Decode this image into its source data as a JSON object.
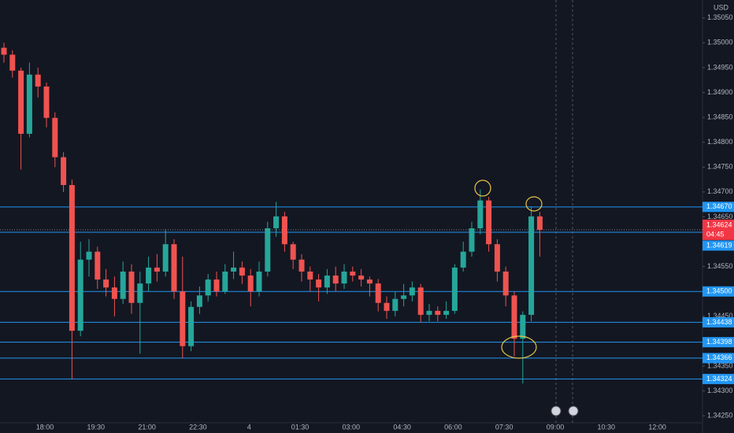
{
  "chart_data": {
    "type": "candlestick",
    "currency": "USD",
    "up_color": "#26a69a",
    "down_color": "#ef5350",
    "level_color": "#2196f3",
    "current_color": "#f23645",
    "ylim": [
      1.34236,
      1.35086
    ],
    "yticks": [
      {
        "value": 1.3505,
        "label": "1.35050"
      },
      {
        "value": 1.35,
        "label": "1.35000"
      },
      {
        "value": 1.3495,
        "label": "1.34950"
      },
      {
        "value": 1.349,
        "label": "1.34900"
      },
      {
        "value": 1.3485,
        "label": "1.34850"
      },
      {
        "value": 1.348,
        "label": "1.34800"
      },
      {
        "value": 1.3475,
        "label": "1.34750"
      },
      {
        "value": 1.347,
        "label": "1.34700"
      },
      {
        "value": 1.3465,
        "label": "1.34650"
      },
      {
        "value": 1.3455,
        "label": "1.34550"
      },
      {
        "value": 1.3445,
        "label": "1.34450"
      },
      {
        "value": 1.3435,
        "label": "1.34350"
      },
      {
        "value": 1.343,
        "label": "1.34300"
      },
      {
        "value": 1.3425,
        "label": "1.34250"
      }
    ],
    "xticks": [
      "18:00",
      "19:30",
      "21:00",
      "22:30",
      "4",
      "01:30",
      "03:00",
      "04:30",
      "06:00",
      "07:30",
      "09:00",
      "10:30",
      "12:00"
    ],
    "levels": [
      {
        "value": 1.3467,
        "label": "1.34670"
      },
      {
        "value": 1.34619,
        "label": "1.34619"
      },
      {
        "value": 1.345,
        "label": "1.34500"
      },
      {
        "value": 1.34438,
        "label": "1.34438"
      },
      {
        "value": 1.34398,
        "label": "1.34398"
      },
      {
        "value": 1.34366,
        "label": "1.34366"
      },
      {
        "value": 1.34324,
        "label": "1.34324"
      }
    ],
    "current": {
      "value": 1.34624,
      "countdown": "04:45"
    },
    "candles": [
      [
        1.3499,
        1.35,
        1.3496,
        1.34976
      ],
      [
        1.34976,
        1.34985,
        1.3493,
        1.34944
      ],
      [
        1.34944,
        1.3495,
        1.34745,
        1.34817
      ],
      [
        1.34817,
        1.3496,
        1.3481,
        1.34936
      ],
      [
        1.34936,
        1.3495,
        1.3489,
        1.34912
      ],
      [
        1.34912,
        1.3492,
        1.3483,
        1.34849
      ],
      [
        1.34849,
        1.3486,
        1.3475,
        1.3477
      ],
      [
        1.3477,
        1.3478,
        1.347,
        1.34714
      ],
      [
        1.34714,
        1.34725,
        1.34324,
        1.34421
      ],
      [
        1.34421,
        1.346,
        1.3441,
        1.34564
      ],
      [
        1.34564,
        1.34605,
        1.3453,
        1.3458
      ],
      [
        1.3458,
        1.3459,
        1.34505,
        1.34524
      ],
      [
        1.34524,
        1.34545,
        1.3449,
        1.34508
      ],
      [
        1.34508,
        1.3453,
        1.3445,
        1.34485
      ],
      [
        1.34485,
        1.3456,
        1.34475,
        1.3454
      ],
      [
        1.3454,
        1.34555,
        1.34455,
        1.34477
      ],
      [
        1.34477,
        1.3454,
        1.34375,
        1.34516
      ],
      [
        1.34516,
        1.3457,
        1.345,
        1.34548
      ],
      [
        1.34548,
        1.34575,
        1.3452,
        1.3454
      ],
      [
        1.3454,
        1.34625,
        1.3453,
        1.34595
      ],
      [
        1.34595,
        1.34605,
        1.34485,
        1.345
      ],
      [
        1.345,
        1.3457,
        1.34366,
        1.3439
      ],
      [
        1.3439,
        1.3448,
        1.3438,
        1.34469
      ],
      [
        1.34469,
        1.3451,
        1.34455,
        1.34492
      ],
      [
        1.34492,
        1.34535,
        1.3448,
        1.34524
      ],
      [
        1.34524,
        1.3454,
        1.3449,
        1.345
      ],
      [
        1.345,
        1.34555,
        1.34495,
        1.3454
      ],
      [
        1.3454,
        1.3458,
        1.34525,
        1.34548
      ],
      [
        1.34548,
        1.3456,
        1.34515,
        1.34532
      ],
      [
        1.34532,
        1.34545,
        1.3447,
        1.345
      ],
      [
        1.345,
        1.3456,
        1.3449,
        1.3454
      ],
      [
        1.3454,
        1.3464,
        1.3453,
        1.34627
      ],
      [
        1.34627,
        1.3468,
        1.3461,
        1.34651
      ],
      [
        1.34651,
        1.3466,
        1.3458,
        1.34595
      ],
      [
        1.34595,
        1.346,
        1.34545,
        1.34564
      ],
      [
        1.34564,
        1.34575,
        1.3452,
        1.3454
      ],
      [
        1.3454,
        1.3455,
        1.345,
        1.34524
      ],
      [
        1.34524,
        1.34535,
        1.3448,
        1.34508
      ],
      [
        1.34508,
        1.34545,
        1.34495,
        1.34532
      ],
      [
        1.34532,
        1.3455,
        1.345,
        1.34516
      ],
      [
        1.34516,
        1.34555,
        1.34505,
        1.3454
      ],
      [
        1.3454,
        1.3455,
        1.3452,
        1.34532
      ],
      [
        1.34532,
        1.34545,
        1.3451,
        1.34524
      ],
      [
        1.34524,
        1.3453,
        1.3449,
        1.34516
      ],
      [
        1.34516,
        1.34525,
        1.3446,
        1.34477
      ],
      [
        1.34477,
        1.3449,
        1.34445,
        1.34461
      ],
      [
        1.34461,
        1.345,
        1.3445,
        1.34485
      ],
      [
        1.34485,
        1.34515,
        1.3447,
        1.34492
      ],
      [
        1.34492,
        1.3452,
        1.3448,
        1.34508
      ],
      [
        1.34508,
        1.34515,
        1.34438,
        1.34453
      ],
      [
        1.34453,
        1.34475,
        1.3444,
        1.34461
      ],
      [
        1.34461,
        1.3447,
        1.3444,
        1.34453
      ],
      [
        1.34453,
        1.3448,
        1.34445,
        1.34461
      ],
      [
        1.34461,
        1.34555,
        1.34455,
        1.34548
      ],
      [
        1.34548,
        1.346,
        1.3454,
        1.3458
      ],
      [
        1.3458,
        1.3464,
        1.3457,
        1.34627
      ],
      [
        1.34627,
        1.34705,
        1.34615,
        1.34683
      ],
      [
        1.34683,
        1.3469,
        1.3458,
        1.34595
      ],
      [
        1.34595,
        1.34605,
        1.3452,
        1.3454
      ],
      [
        1.3454,
        1.3455,
        1.3447,
        1.34492
      ],
      [
        1.34492,
        1.345,
        1.3437,
        1.34405
      ],
      [
        1.34405,
        1.3446,
        1.34315,
        1.34453
      ],
      [
        1.34453,
        1.3467,
        1.3444,
        1.34651
      ],
      [
        1.34651,
        1.3466,
        1.3457,
        1.34624
      ]
    ]
  }
}
